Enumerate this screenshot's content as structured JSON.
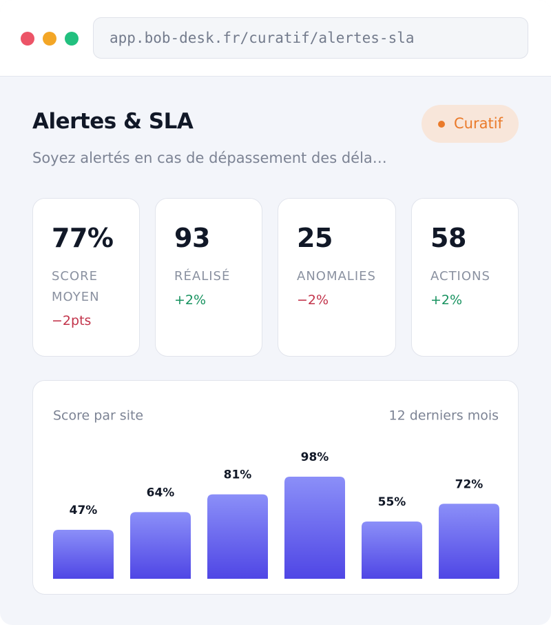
{
  "browser": {
    "url": "app.bob-desk.fr/curatif/alertes-sla"
  },
  "header": {
    "title": "Alertes & SLA",
    "badge": "Curatif",
    "subtitle": "Soyez alertés en cas de dépassement des déla…"
  },
  "kpis": [
    {
      "value": "77%",
      "label": "SCORE MOYEN",
      "delta": "−2pts",
      "color": "#c2334a"
    },
    {
      "value": "93",
      "label": "RÉALISÉ",
      "delta": "+2%",
      "color": "#17925f"
    },
    {
      "value": "25",
      "label": "ANOMALIES",
      "delta": "−2%",
      "color": "#c2334a"
    },
    {
      "value": "58",
      "label": "ACTIONS",
      "delta": "+2%",
      "color": "#17925f"
    }
  ],
  "chart_data": {
    "type": "bar",
    "title": "Score par site",
    "subtitle": "12 derniers mois",
    "values": [
      47,
      64,
      81,
      98,
      55,
      72
    ],
    "value_labels": [
      "47%",
      "64%",
      "81%",
      "98%",
      "55%",
      "72%"
    ],
    "gradient": [
      "#8b8ff8",
      "#4f46e5"
    ]
  }
}
